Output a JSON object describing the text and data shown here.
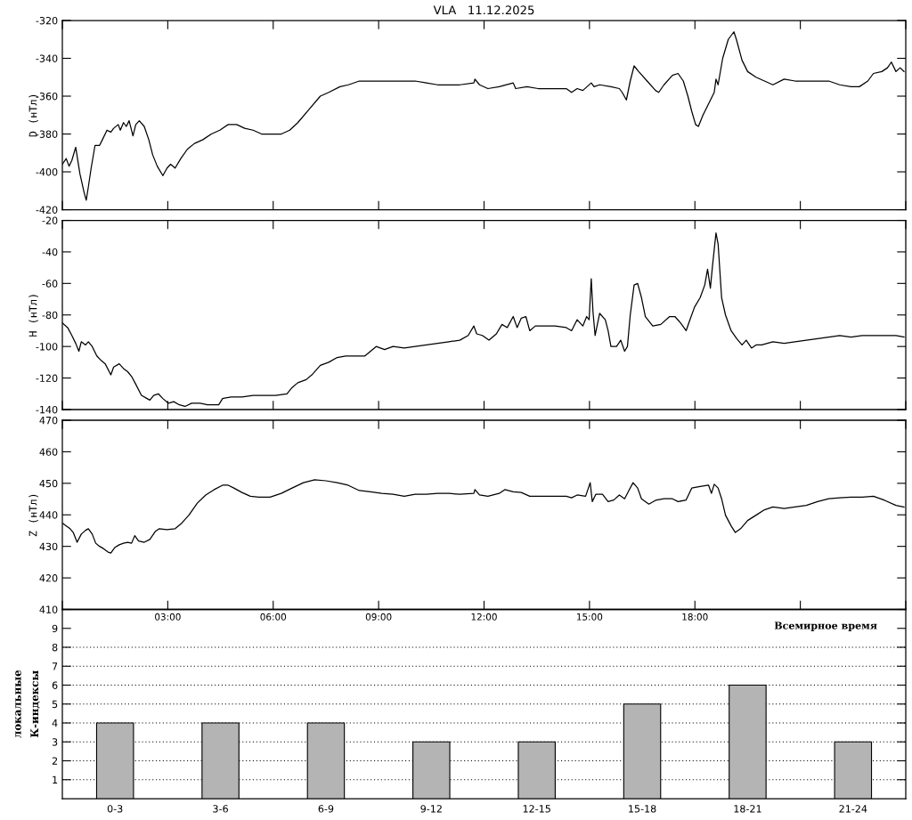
{
  "chart_data": [
    {
      "type": "line",
      "title": "VLA   11.12.2025",
      "ylabel": "D (нТл)",
      "color": "#000000",
      "x": [
        0.0,
        0.11,
        0.19,
        0.27,
        0.38,
        0.5,
        0.62,
        0.68,
        0.74,
        0.82,
        0.93,
        1.06,
        1.14,
        1.27,
        1.38,
        1.46,
        1.59,
        1.65,
        1.74,
        1.82,
        1.9,
        2.01,
        2.09,
        2.19,
        2.33,
        2.46,
        2.57,
        2.7,
        2.86,
        2.98,
        3.08,
        3.21,
        3.37,
        3.56,
        3.76,
        4.0,
        4.24,
        4.48,
        4.72,
        4.96,
        5.19,
        5.43,
        5.67,
        5.91,
        6.23,
        6.47,
        6.7,
        7.02,
        7.34,
        7.58,
        7.9,
        8.14,
        8.45,
        8.77,
        9.09,
        9.41,
        9.73,
        10.04,
        10.36,
        10.68,
        11.0,
        11.31,
        11.71,
        11.74,
        11.87,
        12.11,
        12.43,
        12.83,
        12.9,
        13.22,
        13.54,
        14.02,
        14.34,
        14.49,
        14.65,
        14.81,
        15.05,
        15.13,
        15.29,
        15.61,
        15.85,
        15.93,
        16.05,
        16.16,
        16.27,
        16.4,
        16.64,
        16.88,
        16.97,
        17.12,
        17.36,
        17.52,
        17.67,
        17.8,
        17.91,
        18.02,
        18.1,
        18.23,
        18.39,
        18.55,
        18.6,
        18.66,
        18.79,
        18.95,
        19.11,
        19.18,
        19.34,
        19.5,
        19.74,
        19.98,
        20.22,
        20.54,
        20.85,
        21.17,
        21.49,
        21.81,
        22.12,
        22.44,
        22.68,
        22.92,
        23.08,
        23.32,
        23.48,
        23.59,
        23.72,
        23.84,
        23.95
      ],
      "values": [
        -396,
        -393,
        -397,
        -394,
        -387,
        -401,
        -411,
        -415,
        -408,
        -398,
        -386,
        -386,
        -383,
        -378,
        -379,
        -377,
        -375,
        -378,
        -374,
        -376,
        -373,
        -381,
        -375,
        -373,
        -376,
        -383,
        -391,
        -397,
        -402,
        -398,
        -396,
        -398,
        -393,
        -388,
        -385,
        -383,
        -380,
        -378,
        -375,
        -375,
        -377,
        -378,
        -380,
        -380,
        -380,
        -378,
        -374,
        -367,
        -360,
        -358,
        -355,
        -354,
        -352,
        -352,
        -352,
        -352,
        -352,
        -352,
        -353,
        -354,
        -354,
        -354,
        -353,
        -351,
        -354,
        -356,
        -355,
        -353,
        -356,
        -355,
        -356,
        -356,
        -356,
        -358,
        -356,
        -357,
        -353,
        -355,
        -354,
        -355,
        -356,
        -358,
        -362,
        -352,
        -344,
        -347,
        -352,
        -357,
        -358,
        -354,
        -349,
        -348,
        -352,
        -360,
        -368,
        -375,
        -376,
        -370,
        -364,
        -358,
        -351,
        -354,
        -340,
        -330,
        -326,
        -330,
        -341,
        -347,
        -350,
        -352,
        -354,
        -351,
        -352,
        -352,
        -352,
        -352,
        -354,
        -355,
        -355,
        -352,
        -348,
        -347,
        -345,
        -342,
        -347,
        -345,
        -347
      ],
      "xlim": [
        0,
        24
      ],
      "xticks": [
        {
          "value": 0,
          "label": null
        },
        {
          "value": 3,
          "label": null
        },
        {
          "value": 6,
          "label": null
        },
        {
          "value": 9,
          "label": null
        },
        {
          "value": 12,
          "label": null
        },
        {
          "value": 15,
          "label": null
        },
        {
          "value": 18,
          "label": null
        },
        {
          "value": 21,
          "label": null
        },
        {
          "value": 24,
          "label": null
        }
      ],
      "ylim": [
        -420,
        -320
      ],
      "yticks": [
        -420,
        -400,
        -380,
        -360,
        -340,
        -320
      ],
      "tick_labels": "y"
    },
    {
      "type": "line",
      "ylabel": "H (нТл)",
      "color": "#000000",
      "x": [
        0.0,
        0.15,
        0.27,
        0.38,
        0.47,
        0.54,
        0.66,
        0.74,
        0.85,
        0.98,
        1.11,
        1.22,
        1.38,
        1.46,
        1.62,
        1.74,
        1.86,
        1.97,
        2.09,
        2.25,
        2.41,
        2.49,
        2.6,
        2.73,
        2.86,
        3.02,
        3.17,
        3.33,
        3.49,
        3.68,
        3.92,
        4.13,
        4.32,
        4.45,
        4.56,
        4.8,
        5.11,
        5.43,
        5.75,
        6.07,
        6.39,
        6.54,
        6.7,
        6.94,
        7.1,
        7.34,
        7.58,
        7.82,
        8.06,
        8.29,
        8.61,
        8.93,
        9.17,
        9.41,
        9.73,
        10.04,
        10.36,
        10.68,
        11.0,
        11.31,
        11.55,
        11.71,
        11.79,
        11.95,
        12.14,
        12.35,
        12.51,
        12.66,
        12.83,
        12.94,
        13.06,
        13.19,
        13.3,
        13.46,
        13.7,
        14.02,
        14.34,
        14.49,
        14.65,
        14.81,
        14.92,
        14.99,
        15.05,
        15.1,
        15.16,
        15.29,
        15.45,
        15.53,
        15.61,
        15.77,
        15.89,
        16.0,
        16.08,
        16.16,
        16.27,
        16.37,
        16.48,
        16.59,
        16.8,
        17.03,
        17.28,
        17.43,
        17.59,
        17.75,
        17.86,
        17.99,
        18.15,
        18.28,
        18.36,
        18.44,
        18.5,
        18.6,
        18.66,
        18.76,
        18.87,
        19.03,
        19.19,
        19.34,
        19.46,
        19.61,
        19.74,
        19.9,
        20.22,
        20.54,
        20.85,
        21.17,
        21.49,
        21.81,
        22.12,
        22.44,
        22.76,
        23.08,
        23.4,
        23.72,
        23.95
      ],
      "values": [
        -85,
        -88,
        -93,
        -98,
        -103,
        -97,
        -99,
        -97,
        -100,
        -106,
        -109,
        -111,
        -118,
        -113,
        -111,
        -114,
        -116,
        -119,
        -124,
        -131,
        -133,
        -134,
        -131,
        -130,
        -133,
        -136,
        -135,
        -137,
        -138,
        -136,
        -136,
        -137,
        -137,
        -137,
        -133,
        -132,
        -132,
        -131,
        -131,
        -131,
        -130,
        -126,
        -123,
        -121,
        -118,
        -112,
        -110,
        -107,
        -106,
        -106,
        -106,
        -100,
        -102,
        -100,
        -101,
        -100,
        -99,
        -98,
        -97,
        -96,
        -93,
        -87,
        -92,
        -93,
        -96,
        -92,
        -86,
        -88,
        -81,
        -88,
        -82,
        -81,
        -90,
        -87,
        -87,
        -87,
        -88,
        -90,
        -83,
        -87,
        -81,
        -83,
        -57,
        -78,
        -93,
        -79,
        -83,
        -90,
        -100,
        -100,
        -96,
        -103,
        -100,
        -80,
        -61,
        -60,
        -69,
        -81,
        -87,
        -86,
        -81,
        -81,
        -85,
        -90,
        -83,
        -75,
        -69,
        -61,
        -51,
        -63,
        -49,
        -28,
        -35,
        -69,
        -80,
        -90,
        -95,
        -99,
        -96,
        -101,
        -99,
        -99,
        -97,
        -98,
        -97,
        -96,
        -95,
        -94,
        -93,
        -94,
        -93,
        -93,
        -93,
        -93,
        -94
      ],
      "xlim": [
        0,
        24
      ],
      "xticks": [
        {
          "value": 0,
          "label": null
        },
        {
          "value": 3,
          "label": null
        },
        {
          "value": 6,
          "label": null
        },
        {
          "value": 9,
          "label": null
        },
        {
          "value": 12,
          "label": null
        },
        {
          "value": 15,
          "label": null
        },
        {
          "value": 18,
          "label": null
        },
        {
          "value": 21,
          "label": null
        },
        {
          "value": 24,
          "label": null
        }
      ],
      "ylim": [
        -140,
        -20
      ],
      "yticks": [
        -140,
        -120,
        -100,
        -80,
        -60,
        -40,
        -20
      ],
      "tick_labels": "y"
    },
    {
      "type": "line",
      "ylabel": "Z (нТл)",
      "xlabel": "Всемирное время",
      "color": "#000000",
      "x": [
        0.0,
        0.11,
        0.22,
        0.31,
        0.42,
        0.54,
        0.66,
        0.74,
        0.85,
        0.95,
        1.06,
        1.17,
        1.3,
        1.38,
        1.49,
        1.62,
        1.74,
        1.86,
        1.97,
        2.06,
        2.17,
        2.33,
        2.49,
        2.65,
        2.76,
        2.97,
        3.21,
        3.4,
        3.6,
        3.84,
        4.08,
        4.32,
        4.56,
        4.72,
        4.88,
        5.11,
        5.35,
        5.59,
        5.91,
        6.23,
        6.54,
        6.86,
        7.18,
        7.5,
        7.82,
        8.13,
        8.45,
        8.77,
        9.09,
        9.41,
        9.73,
        10.04,
        10.36,
        10.68,
        11.0,
        11.31,
        11.71,
        11.74,
        11.87,
        12.11,
        12.43,
        12.59,
        12.83,
        13.06,
        13.3,
        13.54,
        14.02,
        14.34,
        14.49,
        14.65,
        14.89,
        15.02,
        15.08,
        15.18,
        15.37,
        15.53,
        15.69,
        15.85,
        16.0,
        16.12,
        16.24,
        16.37,
        16.48,
        16.69,
        16.88,
        17.12,
        17.36,
        17.52,
        17.75,
        17.91,
        18.15,
        18.39,
        18.47,
        18.55,
        18.66,
        18.76,
        18.87,
        19.03,
        19.15,
        19.3,
        19.5,
        19.74,
        19.98,
        20.22,
        20.54,
        20.85,
        21.17,
        21.49,
        21.81,
        22.12,
        22.44,
        22.76,
        23.08,
        23.4,
        23.72,
        23.95
      ],
      "values": [
        437.4,
        436.5,
        435.6,
        434.4,
        431.3,
        433.9,
        435.1,
        435.6,
        433.9,
        431.0,
        430.0,
        429.3,
        428.2,
        427.9,
        429.6,
        430.5,
        431.0,
        431.3,
        431.0,
        433.4,
        431.7,
        431.3,
        432.2,
        434.8,
        435.6,
        435.3,
        435.6,
        437.4,
        439.9,
        443.7,
        446.3,
        448.0,
        449.4,
        449.4,
        448.5,
        447.1,
        445.9,
        445.6,
        445.6,
        446.8,
        448.5,
        450.2,
        451.1,
        450.8,
        450.2,
        449.4,
        447.7,
        447.3,
        446.8,
        446.5,
        445.9,
        446.5,
        446.5,
        446.8,
        446.8,
        446.5,
        446.8,
        448.0,
        446.3,
        445.9,
        446.8,
        448.0,
        447.3,
        447.1,
        445.9,
        445.9,
        445.9,
        445.9,
        445.4,
        446.3,
        445.9,
        450.2,
        444.2,
        446.5,
        446.5,
        444.2,
        444.7,
        446.3,
        445.1,
        447.7,
        450.2,
        448.5,
        445.1,
        443.4,
        444.6,
        445.1,
        445.1,
        444.2,
        444.7,
        448.5,
        449.0,
        449.4,
        446.8,
        449.7,
        448.5,
        445.1,
        439.9,
        436.5,
        434.4,
        435.6,
        438.2,
        439.9,
        441.6,
        442.5,
        442.0,
        442.5,
        443.0,
        444.2,
        445.1,
        445.4,
        445.6,
        445.6,
        445.9,
        444.6,
        443.0,
        442.5
      ],
      "xlim": [
        0,
        24
      ],
      "xticks": [
        {
          "value": 0,
          "label": null
        },
        {
          "value": 3,
          "label": "03:00"
        },
        {
          "value": 6,
          "label": "06:00"
        },
        {
          "value": 9,
          "label": "09:00"
        },
        {
          "value": 12,
          "label": "12:00"
        },
        {
          "value": 15,
          "label": "15:00"
        },
        {
          "value": 18,
          "label": "18:00"
        },
        {
          "value": 21,
          "label": null
        },
        {
          "value": 24,
          "label": null
        }
      ],
      "ylim": [
        410,
        470
      ],
      "yticks": [
        410,
        420,
        430,
        440,
        450,
        460,
        470
      ]
    },
    {
      "type": "bar",
      "ylabel": "локальные\nК-индексы",
      "categories": [
        "0-3",
        "3-6",
        "6-9",
        "9-12",
        "12-15",
        "15-18",
        "18-21",
        "21-24"
      ],
      "values": [
        4,
        4,
        4,
        3,
        3,
        5,
        6,
        3
      ],
      "color": "#b4b4b4",
      "ylim": [
        0,
        10
      ],
      "yticks": [
        1,
        2,
        3,
        4,
        5,
        6,
        7,
        8,
        9
      ],
      "ref_lines": [
        {
          "axis": "y",
          "value": 1,
          "line_style": "dotted"
        },
        {
          "axis": "y",
          "value": 2,
          "line_style": "dotted"
        },
        {
          "axis": "y",
          "value": 3,
          "line_style": "dotted"
        },
        {
          "axis": "y",
          "value": 4,
          "line_style": "dotted"
        },
        {
          "axis": "y",
          "value": 5,
          "line_style": "dotted"
        },
        {
          "axis": "y",
          "value": 6,
          "line_style": "dotted"
        },
        {
          "axis": "y",
          "value": 7,
          "line_style": "dotted"
        },
        {
          "axis": "y",
          "value": 8,
          "line_style": "dotted"
        }
      ]
    }
  ]
}
